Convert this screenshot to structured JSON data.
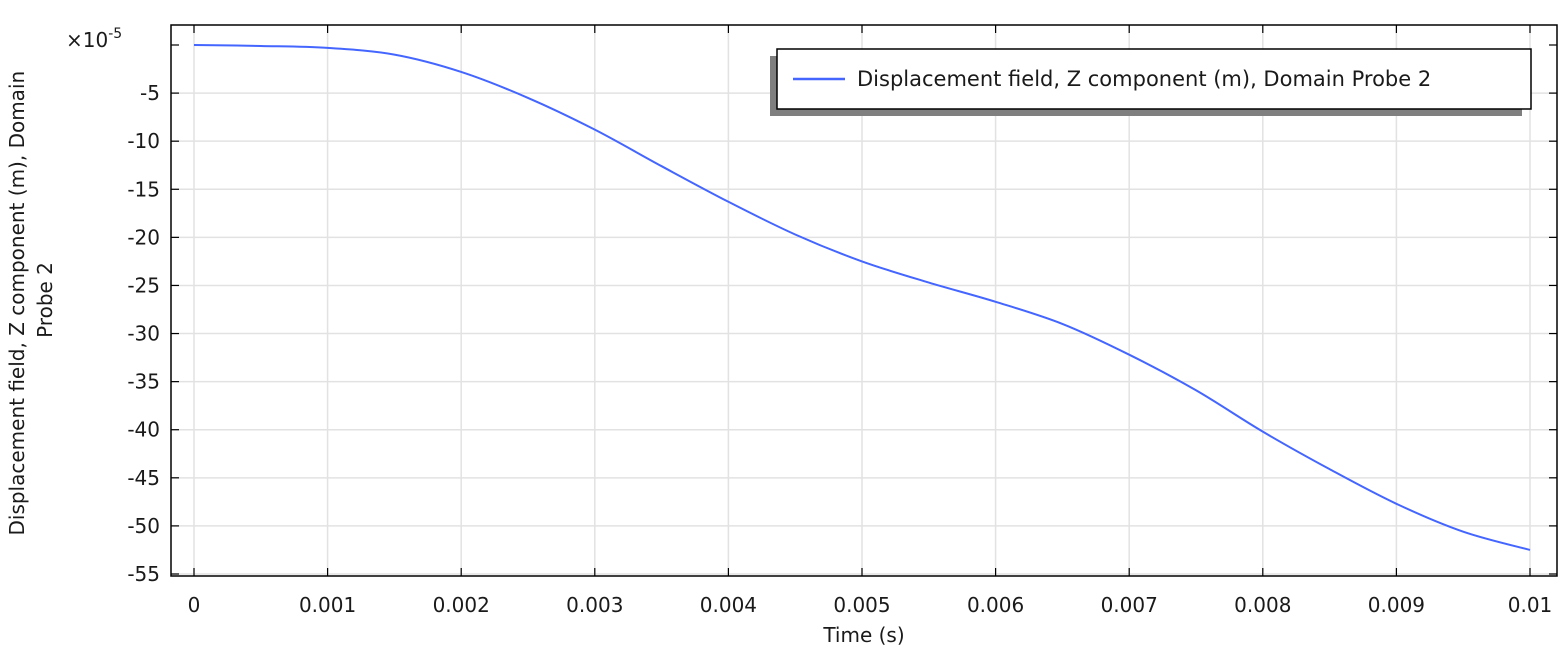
{
  "chart_data": {
    "type": "line",
    "title": "",
    "xlabel": "Time (s)",
    "ylabel": "Displacement field, Z component (m), Domain Probe 2",
    "ylabel_lines": [
      "Displacement field, Z component (m), Domain",
      "Probe 2"
    ],
    "y_multiplier": "×10",
    "y_multiplier_exp": "-5",
    "xlim": [
      0,
      0.01
    ],
    "ylim": [
      -55,
      0
    ],
    "x_ticks": [
      0,
      0.001,
      0.002,
      0.003,
      0.004,
      0.005,
      0.006,
      0.007,
      0.008,
      0.009,
      0.01
    ],
    "x_tick_labels": [
      "0",
      "0.001",
      "0.002",
      "0.003",
      "0.004",
      "0.005",
      "0.006",
      "0.007",
      "0.008",
      "0.009",
      "0.01"
    ],
    "y_ticks": [
      -5,
      -10,
      -15,
      -20,
      -25,
      -30,
      -35,
      -40,
      -45,
      -50,
      -55
    ],
    "y_tick_labels": [
      "-5",
      "-10",
      "-15",
      "-20",
      "-25",
      "-30",
      "-35",
      "-40",
      "-45",
      "-50",
      "-55"
    ],
    "grid": true,
    "legend_position": "top-right",
    "series": [
      {
        "name": "Displacement field, Z component (m), Domain Probe 2",
        "color": "#4466ff",
        "x": [
          0,
          0.0005,
          0.001,
          0.0015,
          0.002,
          0.0025,
          0.003,
          0.0035,
          0.004,
          0.0045,
          0.005,
          0.0055,
          0.006,
          0.0065,
          0.007,
          0.0075,
          0.008,
          0.0085,
          0.009,
          0.0095,
          0.01
        ],
        "y": [
          0,
          -0.1,
          -0.3,
          -1.0,
          -2.8,
          -5.5,
          -8.8,
          -12.6,
          -16.3,
          -19.7,
          -22.5,
          -24.7,
          -26.7,
          -29.0,
          -32.2,
          -35.9,
          -40.2,
          -44.1,
          -47.7,
          -50.6,
          -52.5
        ]
      }
    ]
  }
}
